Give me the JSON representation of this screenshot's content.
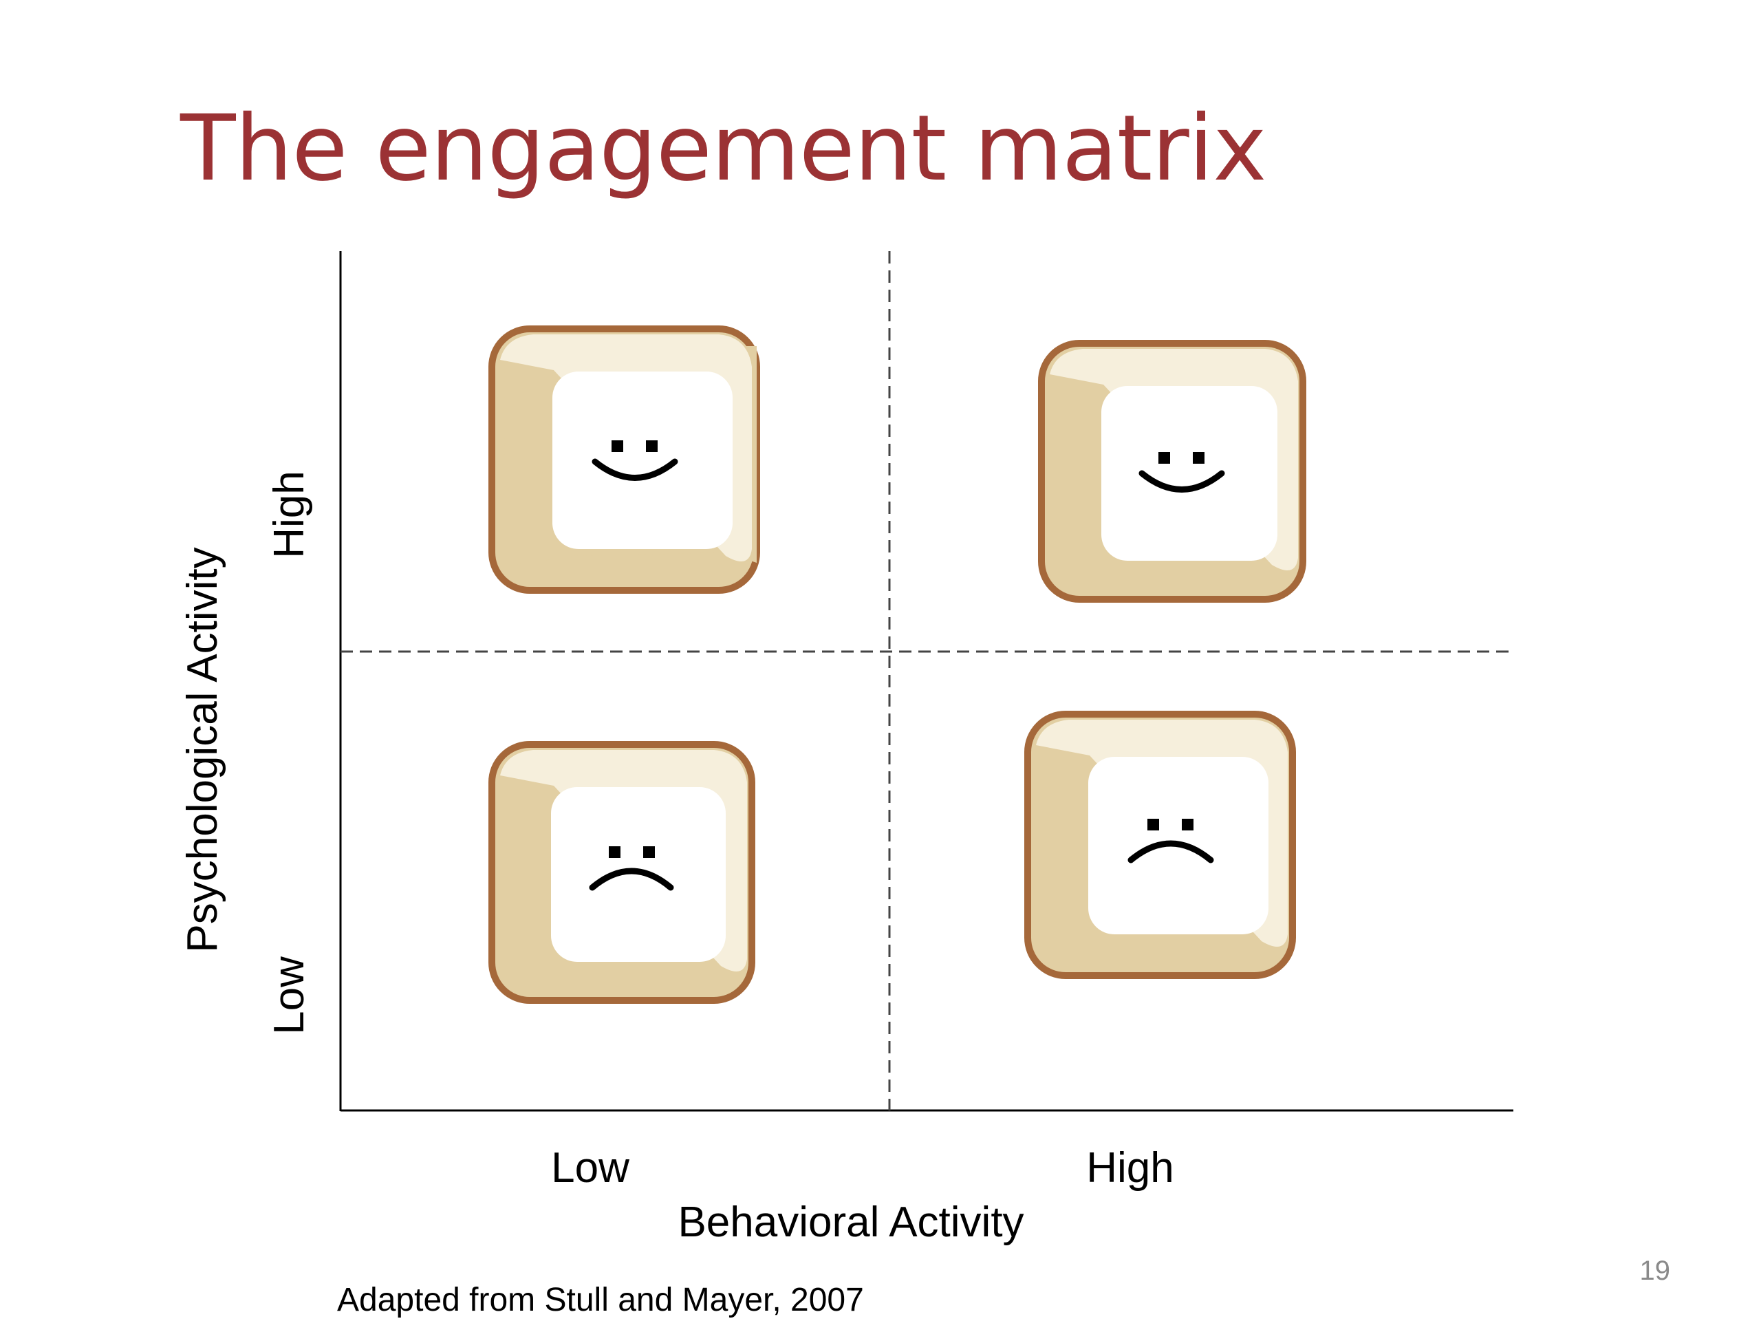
{
  "slide": {
    "title": "The engagement matrix",
    "citation": "Adapted from Stull and Mayer, 2007",
    "page_number": "19"
  },
  "matrix": {
    "x_axis": {
      "label": "Behavioral Activity",
      "ticks": [
        "Low",
        "High"
      ]
    },
    "y_axis": {
      "label": "Psychological Activity",
      "ticks": [
        "Low",
        "High"
      ]
    },
    "quadrants": [
      {
        "behavioral": "Low",
        "psychological": "High",
        "face": "smile"
      },
      {
        "behavioral": "High",
        "psychological": "High",
        "face": "smile"
      },
      {
        "behavioral": "Low",
        "psychological": "Low",
        "face": "frown"
      },
      {
        "behavioral": "High",
        "psychological": "Low",
        "face": "frown"
      }
    ]
  },
  "colors": {
    "title": "#9b3234",
    "tile_border": "#a5683a",
    "tile_bevel": "#e2cfa3",
    "tile_face": "#f6efdc"
  }
}
